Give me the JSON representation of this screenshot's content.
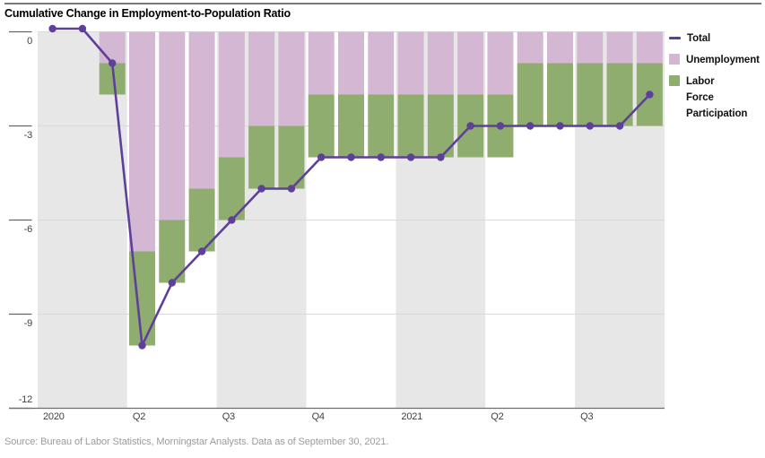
{
  "header": {
    "title": "Cumulative Change in Employment-to-Population Ratio"
  },
  "footer": {
    "source": "Source: Bureau of Labor Statistics, Morningstar Analysts. Data as of September 30, 2021."
  },
  "legend": {
    "items": [
      {
        "label": "Total",
        "marker": "line",
        "color": "#5e3f99"
      },
      {
        "label": "Unemployment",
        "marker": "square",
        "color": "#d4b7d3"
      },
      {
        "label": "Labor\nForce\nParticipation",
        "marker": "square",
        "color": "#8ead6f"
      }
    ]
  },
  "colors": {
    "total_line": "#5e3f99",
    "unemployment_bar": "#d4b7d3",
    "labor_force_bar": "#8ead6f",
    "quarter_band": "#e7e7e7",
    "gridline": "#d9d9d9",
    "tick": "#666666",
    "axis": "#6e6e6e"
  },
  "chart_data": {
    "type": "combo: stacked bar (contributions) + line (total)",
    "title": "Cumulative Change in Employment-to-Population Ratio",
    "unit": "percentage points, cumulative change since Jan 2020",
    "x_months": [
      "2020-01",
      "2020-02",
      "2020-03",
      "2020-04",
      "2020-05",
      "2020-06",
      "2020-07",
      "2020-08",
      "2020-09",
      "2020-10",
      "2020-11",
      "2020-12",
      "2021-01",
      "2021-02",
      "2021-03",
      "2021-04",
      "2021-05",
      "2021-06",
      "2021-07",
      "2021-08",
      "2021-09"
    ],
    "series": [
      {
        "name": "Total",
        "type": "line",
        "values": [
          0.1,
          0.1,
          -1.0,
          -10.0,
          -8.0,
          -7.0,
          -6.0,
          -5.0,
          -5.0,
          -4.0,
          -4.0,
          -4.0,
          -4.0,
          -4.0,
          -3.0,
          -3.0,
          -3.0,
          -3.0,
          -3.0,
          -3.0,
          -2.0
        ]
      },
      {
        "name": "Unemployment",
        "type": "bar",
        "values": [
          0,
          0,
          -1.0,
          -7.0,
          -6.0,
          -5.0,
          -4.0,
          -3.0,
          -3.0,
          -2.0,
          -2.0,
          -2.0,
          -2.0,
          -2.0,
          -2.0,
          -2.0,
          -1.0,
          -1.0,
          -1.0,
          -1.0,
          -1.0
        ]
      },
      {
        "name": "Labor Force Participation",
        "type": "bar",
        "values": [
          0,
          0,
          -1.0,
          -3.0,
          -2.0,
          -2.0,
          -2.0,
          -2.0,
          -2.0,
          -2.0,
          -2.0,
          -2.0,
          -2.0,
          -2.0,
          -2.0,
          -2.0,
          -2.0,
          -2.0,
          -2.0,
          -2.0,
          -2.0
        ]
      }
    ],
    "yticks": [
      {
        "label": "0",
        "value": 0
      },
      {
        "label": "-3",
        "value": -3
      },
      {
        "label": "-6",
        "value": -6
      },
      {
        "label": "-9",
        "value": -9
      },
      {
        "label": "-12",
        "value": -12
      }
    ],
    "xticks": [
      {
        "label": "2020",
        "slot": 0
      },
      {
        "label": "Q2",
        "slot": 3
      },
      {
        "label": "Q3",
        "slot": 6
      },
      {
        "label": "Q4",
        "slot": 9
      },
      {
        "label": "2021",
        "slot": 12
      },
      {
        "label": "Q2",
        "slot": 15
      },
      {
        "label": "Q3",
        "slot": 18
      }
    ],
    "ylim": [
      -12,
      0
    ],
    "grid": "horizontal gridlines at 0,-3,-6,-9; baseline at -12",
    "legend_position": "top-right outside plot",
    "shading": "alternating vertical quarter bands, gray on Q1-2020, Q3-2020, Q1-2021, Q3-2021"
  }
}
